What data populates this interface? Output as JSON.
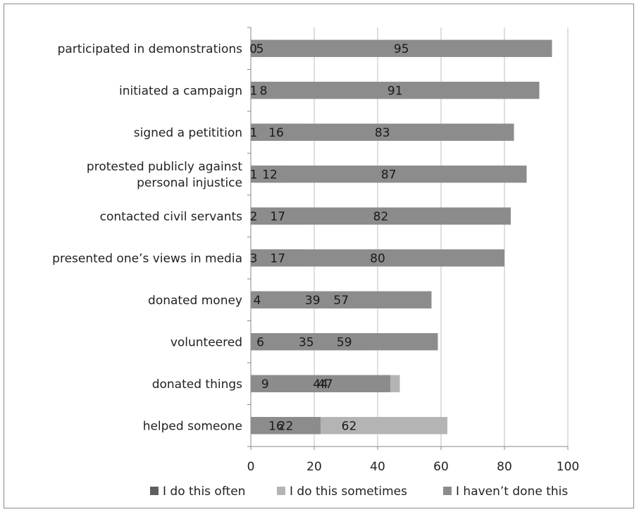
{
  "chart_data": {
    "type": "bar",
    "orientation": "horizontal",
    "stacked": true,
    "title": "",
    "xlabel": "",
    "ylabel": "",
    "xlim": [
      0,
      100
    ],
    "x_ticks": [
      0,
      20,
      40,
      60,
      80,
      100
    ],
    "grid": "vertical",
    "legend_position": "bottom",
    "categories": [
      "participated in demonstrations",
      "initiated a campaign",
      "signed a petitition",
      "protested publicly against personal injustice",
      "contacted civil servants",
      "presented one’s views in media",
      "donated money",
      "volunteered",
      "donated things",
      "helped someone"
    ],
    "category_lines": [
      [
        "participated in demonstrations"
      ],
      [
        "initiated a campaign"
      ],
      [
        "signed a petitition"
      ],
      [
        "protested publicly against",
        "personal injustice"
      ],
      [
        "contacted civil servants"
      ],
      [
        "presented one’s views in media"
      ],
      [
        "donated money"
      ],
      [
        "volunteered"
      ],
      [
        "donated things"
      ],
      [
        "helped someone"
      ]
    ],
    "series": [
      {
        "name": "I do this often",
        "color": "#5f5f5f",
        "values": [
          0,
          1,
          1,
          1,
          2,
          3,
          4,
          6,
          9,
          16
        ]
      },
      {
        "name": "I do this sometimes",
        "color": "#b4b4b4",
        "values": [
          5,
          8,
          16,
          12,
          17,
          17,
          39,
          35,
          47,
          62
        ]
      },
      {
        "name": "I haven’t done this",
        "color": "#8c8c8c",
        "values": [
          95,
          91,
          83,
          87,
          82,
          80,
          57,
          59,
          44,
          22
        ]
      }
    ],
    "data_labels": [
      [
        "0",
        "5",
        "95"
      ],
      [
        "1",
        "8",
        "91"
      ],
      [
        "1",
        "16",
        "83"
      ],
      [
        "1",
        "12",
        "87"
      ],
      [
        "2",
        "17",
        "82"
      ],
      [
        "3",
        "17",
        "80"
      ],
      [
        "4",
        "39",
        "57"
      ],
      [
        "6",
        "35",
        "59"
      ],
      [
        "9",
        "47",
        "44"
      ],
      [
        "16",
        "62",
        "22"
      ]
    ]
  }
}
